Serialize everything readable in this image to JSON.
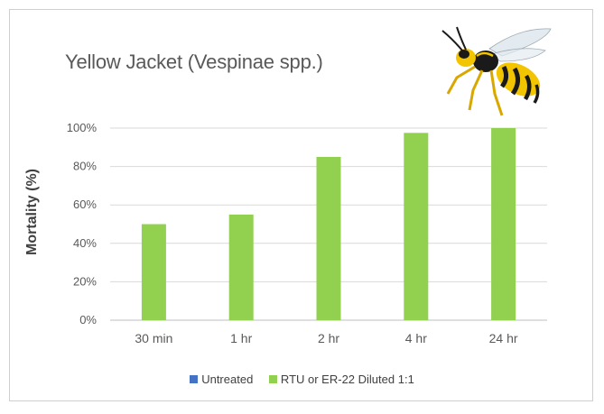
{
  "chart_data": {
    "type": "bar",
    "title": "Yellow Jacket (Vespinae spp.)",
    "xlabel": "",
    "ylabel": "Mortality (%)",
    "categories": [
      "30 min",
      "1 hr",
      "2 hr",
      "4 hr",
      "24 hr"
    ],
    "yticks": [
      "0%",
      "20%",
      "40%",
      "60%",
      "80%",
      "100%"
    ],
    "ylim": [
      0,
      100
    ],
    "grid": "horizontal",
    "legend_position": "bottom",
    "series": [
      {
        "name": "Untreated",
        "color": "#4472c4",
        "values": [
          0,
          0,
          0,
          0,
          0
        ]
      },
      {
        "name": "RTU or ER-22 Diluted 1:1",
        "color": "#92d050",
        "values": [
          50,
          55,
          85,
          97.5,
          100
        ]
      }
    ]
  }
}
